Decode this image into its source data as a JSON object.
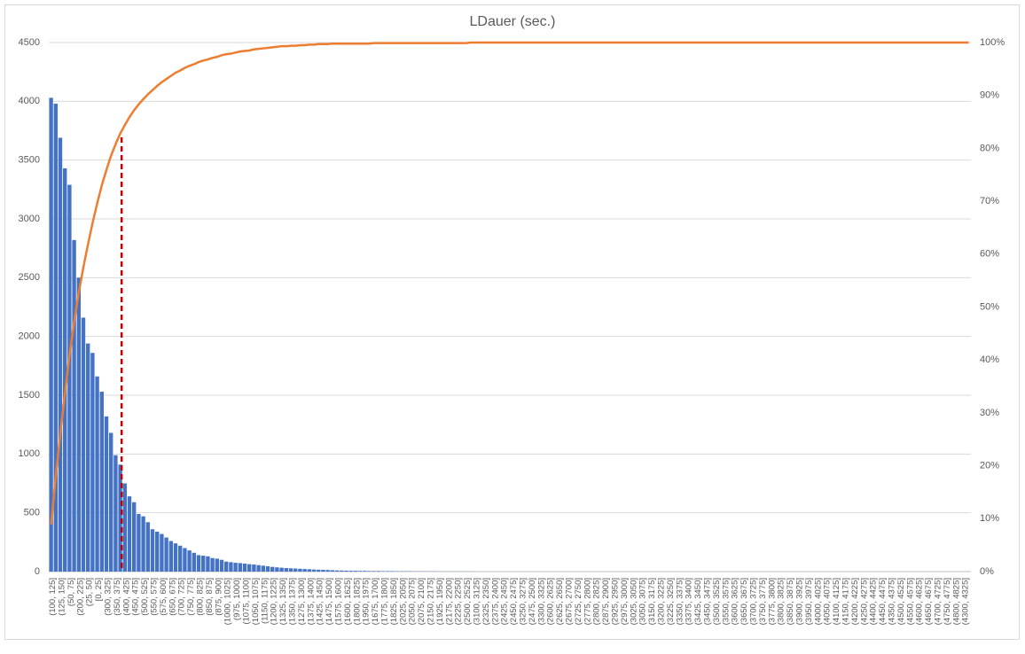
{
  "chart_data": {
    "type": "pareto",
    "title": "LDauer (sec.)",
    "categories": [
      "(100, 125]",
      null,
      "(125, 150]",
      null,
      "(50, 75]",
      null,
      "(200, 225]",
      null,
      "(25, 50]",
      null,
      "[0, 25]",
      null,
      "(300, 325]",
      null,
      "(350, 375]",
      null,
      "(400, 425]",
      null,
      "(450, 475]",
      null,
      "(500, 525]",
      null,
      "(550, 575]",
      null,
      "(575, 600]",
      null,
      "(650, 675]",
      null,
      "(700, 725]",
      null,
      "(750, 775]",
      null,
      "(800, 825]",
      null,
      "(850, 875]",
      null,
      "(875, 900]",
      null,
      "(1000, 1025]",
      null,
      "(975, 1000]",
      null,
      "(1075, 1100]",
      null,
      "(1050, 1075]",
      null,
      "(1150, 1175]",
      null,
      "(1200, 1225]",
      null,
      "(1325, 1350]",
      null,
      "(1350, 1375]",
      null,
      "(1275, 1300]",
      null,
      "(1375, 1400]",
      null,
      "(1425, 1450]",
      null,
      "(1475, 1500]",
      null,
      "(1575, 1600]",
      null,
      "(1600, 1625]",
      null,
      "(1800, 1825]",
      null,
      "(1950, 1975]",
      null,
      "(1675, 1700]",
      null,
      "(1775, 1800]",
      null,
      "(1825, 1850]",
      null,
      "(2025, 2050]",
      null,
      "(2050, 2075]",
      null,
      "(2075, 2100]",
      null,
      "(2150, 2175]",
      null,
      "(1925, 1950]",
      null,
      "(2175, 2200]",
      null,
      "(2225, 2250]",
      null,
      "(2500, 2525]",
      null,
      "(3100, 3125]",
      null,
      "(2325, 2350]",
      null,
      "(2375, 2400]",
      null,
      "(2425, 2450]",
      null,
      "(2450, 2475]",
      null,
      "(3250, 3275]",
      null,
      "(2475, 2500]",
      null,
      "(3300, 3325]",
      null,
      "(2600, 2625]",
      null,
      "(2625, 2650]",
      null,
      "(2675, 2700]",
      null,
      "(2725, 2750]",
      null,
      "(2775, 2800]",
      null,
      "(2800, 2825]",
      null,
      "(2875, 2900]",
      null,
      "(2925, 2950]",
      null,
      "(2975, 3000]",
      null,
      "(3025, 3050]",
      null,
      "(3050, 3075]",
      null,
      "(3150, 3175]",
      null,
      "(3200, 3225]",
      null,
      "(3225, 3250]",
      null,
      "(3350, 3375]",
      null,
      "(3375, 3400]",
      null,
      "(3425, 3450]",
      null,
      "(3450, 3475]",
      null,
      "(3500, 3525]",
      null,
      "(3550, 3575]",
      null,
      "(3600, 3625]",
      null,
      "(3650, 3675]",
      null,
      "(3700, 3725]",
      null,
      "(3750, 3775]",
      null,
      "(3775, 3800]",
      null,
      "(3800, 3825]",
      null,
      "(3850, 3875]",
      null,
      "(3900, 3925]",
      null,
      "(3950, 3975]",
      null,
      "(4000, 4025]",
      null,
      "(4050, 4075]",
      null,
      "(4100, 4125]",
      null,
      "(4150, 4175]",
      null,
      "(4200, 4225]",
      null,
      "(4250, 4275]",
      null,
      "(4400, 4425]",
      null,
      "(4450, 4475]",
      null,
      "(4350, 4375]",
      null,
      "(4500, 4525]",
      null,
      "(4550, 4575]",
      null,
      "(4600, 4625]",
      null,
      "(4650, 4675]",
      null,
      "(4700, 4725]",
      null,
      "(4750, 4775]",
      null,
      "(4800, 4825]",
      null,
      "(4300, 4325]",
      null
    ],
    "series": [
      {
        "color": "#4472c4",
        "values": [
          4030,
          3980,
          3690,
          3430,
          3290,
          2820,
          2500,
          2160,
          1940,
          1860,
          1660,
          1530,
          1320,
          1180,
          990,
          910,
          750,
          640,
          590,
          490,
          470,
          420,
          360,
          340,
          320,
          290,
          260,
          240,
          220,
          200,
          180,
          160,
          140,
          135,
          130,
          115,
          110,
          100,
          85,
          80,
          75,
          72,
          68,
          63,
          60,
          55,
          50,
          45,
          40,
          36,
          33,
          30,
          28,
          26,
          24,
          22,
          20,
          18,
          16,
          15,
          14,
          12,
          10,
          9,
          8,
          7,
          7,
          6,
          6,
          5,
          5,
          5,
          4,
          4,
          4,
          3,
          3,
          3,
          3,
          2,
          2,
          2,
          2,
          2,
          1,
          1,
          1,
          1,
          1,
          1,
          1,
          1,
          0,
          0,
          0,
          0,
          0,
          0,
          0,
          0,
          0,
          0,
          0,
          0,
          0,
          0,
          0,
          0,
          0,
          0,
          0,
          0,
          0,
          0,
          0,
          0,
          0,
          0,
          0,
          0,
          0,
          0,
          0,
          0,
          0,
          0,
          0,
          0,
          0,
          0,
          0,
          0,
          0,
          0,
          0,
          0,
          0,
          0,
          0,
          0,
          0,
          0,
          0,
          0,
          0,
          0,
          0,
          0,
          0,
          0,
          0,
          0,
          0,
          0,
          0,
          0,
          0,
          0,
          0,
          0,
          0,
          0,
          0,
          0,
          0,
          0,
          0,
          0,
          0,
          0,
          0,
          0,
          0,
          0,
          0,
          0,
          0,
          0,
          0,
          0,
          0,
          0,
          0,
          0,
          0,
          0,
          0,
          0,
          0,
          0,
          0,
          0,
          0,
          0,
          0,
          0,
          0,
          0,
          0,
          0
        ]
      },
      {
        "color": "#ed7d31",
        "axis": "y2",
        "values": [
          8.9,
          17.8,
          26.0,
          33.6,
          40.9,
          47.2,
          52.7,
          57.5,
          61.8,
          65.9,
          69.6,
          73.0,
          75.9,
          78.6,
          80.8,
          82.8,
          84.4,
          85.9,
          87.2,
          88.3,
          89.3,
          90.2,
          91.0,
          91.8,
          92.5,
          93.1,
          93.7,
          94.3,
          94.7,
          95.2,
          95.6,
          95.9,
          96.3,
          96.6,
          96.8,
          97.1,
          97.3,
          97.6,
          97.8,
          97.9,
          98.1,
          98.3,
          98.4,
          98.5,
          98.7,
          98.8,
          98.9,
          99.0,
          99.1,
          99.2,
          99.3,
          99.3,
          99.4,
          99.4,
          99.5,
          99.5,
          99.6,
          99.6,
          99.7,
          99.7,
          99.7,
          99.8,
          99.8,
          99.8,
          99.8,
          99.8,
          99.8,
          99.8,
          99.8,
          99.8,
          99.9,
          99.9,
          99.9,
          99.9,
          99.9,
          99.9,
          99.9,
          99.9,
          99.9,
          99.9,
          99.9,
          99.9,
          99.9,
          99.9,
          99.9,
          99.9,
          99.9,
          99.9,
          99.9,
          99.9,
          99.9,
          100,
          100,
          100,
          100,
          100,
          100,
          100,
          100,
          100,
          100,
          100,
          100,
          100,
          100,
          100,
          100,
          100,
          100,
          100,
          100,
          100,
          100,
          100,
          100,
          100,
          100,
          100,
          100,
          100,
          100,
          100,
          100,
          100,
          100,
          100,
          100,
          100,
          100,
          100,
          100,
          100,
          100,
          100,
          100,
          100,
          100,
          100,
          100,
          100,
          100,
          100,
          100,
          100,
          100,
          100,
          100,
          100,
          100,
          100,
          100,
          100,
          100,
          100,
          100,
          100,
          100,
          100,
          100,
          100,
          100,
          100,
          100,
          100,
          100,
          100,
          100,
          100,
          100,
          100,
          100,
          100,
          100,
          100,
          100,
          100,
          100,
          100,
          100,
          100,
          100,
          100,
          100,
          100,
          100,
          100,
          100,
          100,
          100,
          100,
          100,
          100,
          100,
          100,
          100,
          100,
          100,
          100,
          100,
          100
        ]
      }
    ],
    "ylim": [
      0,
      4500
    ],
    "yticks": [
      0,
      500,
      1000,
      1500,
      2000,
      2500,
      3000,
      3500,
      4000,
      4500
    ],
    "y2lim": [
      0,
      100
    ],
    "y2ticks": [
      {
        "value": 0,
        "label": "0%"
      },
      {
        "value": 10,
        "label": "10%"
      },
      {
        "value": 20,
        "label": "20%"
      },
      {
        "value": 30,
        "label": "30%"
      },
      {
        "value": 40,
        "label": "40%"
      },
      {
        "value": 50,
        "label": "50%"
      },
      {
        "value": 60,
        "label": "60%"
      },
      {
        "value": 70,
        "label": "70%"
      },
      {
        "value": 80,
        "label": "80%"
      },
      {
        "value": 90,
        "label": "90%"
      },
      {
        "value": 100,
        "label": "100%"
      }
    ],
    "grid": true
  }
}
